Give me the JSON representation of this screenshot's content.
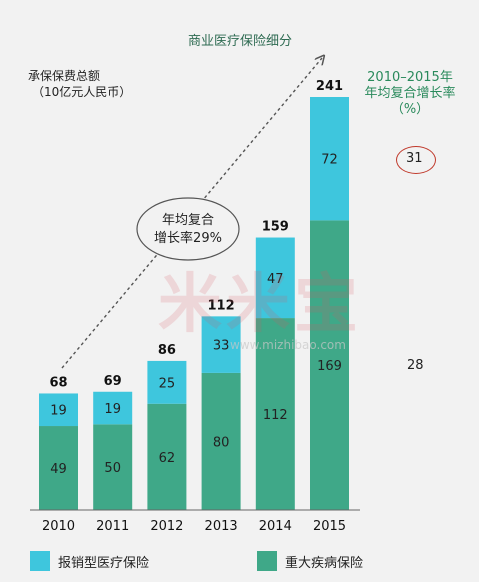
{
  "chart_data": {
    "type": "bar",
    "title": "商业医疗保险细分",
    "ylabel_line1": "承保保费总额",
    "ylabel_line2": "（10亿元人民币）",
    "categories": [
      "2010",
      "2011",
      "2012",
      "2013",
      "2014",
      "2015"
    ],
    "series": [
      {
        "name": "重大疾病保险",
        "values": [
          49,
          50,
          62,
          80,
          112,
          169
        ],
        "color": "#3fa888"
      },
      {
        "name": "报销型医疗保险",
        "values": [
          19,
          19,
          25,
          33,
          47,
          72
        ],
        "color": "#3ec6dd"
      }
    ],
    "totals": [
      68,
      69,
      86,
      112,
      159,
      241
    ],
    "ylim": [
      0,
      241
    ],
    "stacked": true,
    "growth_annotation": {
      "line1": "年均复合",
      "line2": "增长率29%"
    },
    "cagr_header": {
      "line1": "2010–2015年",
      "line2": "年均复合增长率",
      "line3": "（%）"
    },
    "cagr_values": {
      "reimbursement": "31",
      "critical_illness": "28"
    },
    "legend": [
      {
        "label": "报销型医疗保险",
        "color": "#3ec6dd"
      },
      {
        "label": "重大疾病保险",
        "color": "#3fa888"
      }
    ]
  },
  "watermark": {
    "text": "米米宝",
    "url": "www.mizhibao.com"
  }
}
